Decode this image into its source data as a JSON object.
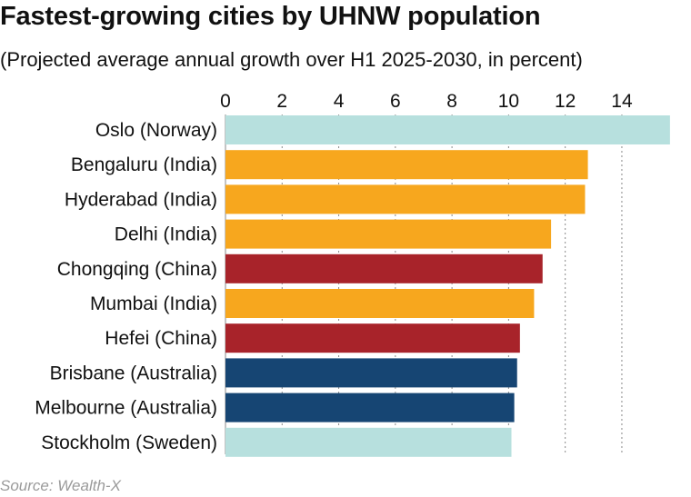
{
  "chart_data": {
    "type": "bar",
    "orientation": "horizontal",
    "title": "Fastest-growing cities by UHNW population",
    "subtitle": "(Projected average annual growth over H1 2025-2030, in percent)",
    "source": "Source: Wealth-X",
    "xlabel": "",
    "ylabel": "",
    "xlim": [
      0,
      15.8
    ],
    "xticks": [
      "0",
      "2",
      "4",
      "6",
      "8",
      "10",
      "12",
      "14"
    ],
    "grid": "vertical-dotted",
    "categories": [
      "Oslo (Norway)",
      "Bengaluru (India)",
      "Hyderabad (India)",
      "Delhi (India)",
      "Chongqing (China)",
      "Mumbai (India)",
      "Hefei (China)",
      "Brisbane (Australia)",
      "Melbourne (Australia)",
      "Stockholm (Sweden)"
    ],
    "values": [
      15.7,
      12.8,
      12.7,
      11.5,
      11.2,
      10.9,
      10.4,
      10.3,
      10.2,
      10.1
    ],
    "groups": [
      "Norway",
      "India",
      "India",
      "India",
      "China",
      "India",
      "China",
      "Australia",
      "Australia",
      "Sweden"
    ],
    "colors": {
      "Norway": "#b7e0de",
      "Sweden": "#b7e0de",
      "India": "#f7a71e",
      "China": "#a8232a",
      "Australia": "#164573"
    }
  }
}
